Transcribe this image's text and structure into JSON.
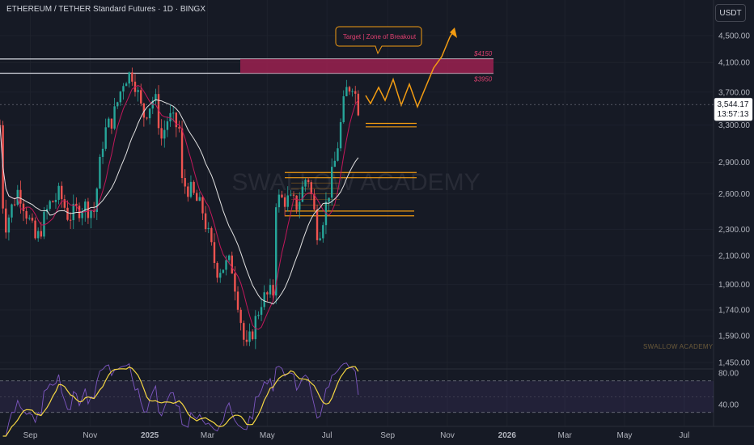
{
  "header": {
    "title": "ETHEREUM / TETHER Standard Futures · 1D · BINGX",
    "currency": "USDT"
  },
  "watermark": {
    "main": "SWALLOW ACADEMY",
    "small": "SWALLOW ACADEMY"
  },
  "annotations": {
    "target": "Target | Zone of Breakout",
    "upper_level": "$4150",
    "lower_level": "$3950"
  },
  "price_tag": {
    "price": "3,544.17",
    "countdown": "13:57:13"
  },
  "colors": {
    "background": "#161a25",
    "bull": "#26a69a",
    "bear": "#ef5350",
    "zone": "#9b2150",
    "orange": "#f39c12",
    "rsi": "#7e57c2",
    "rsi_ma": "#f5d742"
  },
  "chart_data": [
    {
      "type": "candlestick",
      "title": "ETHEREUM / TETHER Standard Futures · 1D · BINGX",
      "y_scale": "log",
      "y_ticks": [
        "4,500.00",
        "4,100.00",
        "3,700.00",
        "3,300.00",
        "2,900.00",
        "2,600.00",
        "2,300.00",
        "2,100.00",
        "1,900.00",
        "1,740.00",
        "1,590.00",
        "1,450.00"
      ],
      "x_ticks": [
        "Sep",
        "Nov",
        "2025",
        "Mar",
        "May",
        "Jul",
        "Sep",
        "Nov",
        "2026",
        "Mar",
        "May",
        "Jul"
      ],
      "last_price": 3544.17,
      "levels": [
        {
          "label": "$4150",
          "value": 4150
        },
        {
          "label": "$3950",
          "value": 3950
        }
      ],
      "support_zones": [
        [
          2800,
          2750
        ],
        [
          2450,
          2410
        ],
        [
          3320,
          3280
        ]
      ],
      "price_path": [
        [
          "2024-08-01",
          3300
        ],
        [
          "2024-08-05",
          2300
        ],
        [
          "2024-08-20",
          2650
        ],
        [
          "2024-09-07",
          2200
        ],
        [
          "2024-09-20",
          2500
        ],
        [
          "2024-10-01",
          2600
        ],
        [
          "2024-10-10",
          2400
        ],
        [
          "2024-10-25",
          2500
        ],
        [
          "2024-11-05",
          2450
        ],
        [
          "2024-11-15",
          3200
        ],
        [
          "2024-11-25",
          3400
        ],
        [
          "2024-12-06",
          3900
        ],
        [
          "2024-12-15",
          3950
        ],
        [
          "2024-12-25",
          3400
        ],
        [
          "2025-01-06",
          3650
        ],
        [
          "2025-01-13",
          3150
        ],
        [
          "2025-01-20",
          3400
        ],
        [
          "2025-01-31",
          3250
        ],
        [
          "2025-02-03",
          2700
        ],
        [
          "2025-02-10",
          2650
        ],
        [
          "2025-02-24",
          2450
        ],
        [
          "2025-03-10",
          2000
        ],
        [
          "2025-03-25",
          2050
        ],
        [
          "2025-04-01",
          1800
        ],
        [
          "2025-04-09",
          1500
        ],
        [
          "2025-04-15",
          1600
        ],
        [
          "2025-04-25",
          1800
        ],
        [
          "2025-05-07",
          1850
        ],
        [
          "2025-05-10",
          2550
        ],
        [
          "2025-05-20",
          2550
        ],
        [
          "2025-06-01",
          2500
        ],
        [
          "2025-06-11",
          2800
        ],
        [
          "2025-06-22",
          2250
        ],
        [
          "2025-06-30",
          2500
        ],
        [
          "2025-07-10",
          2950
        ],
        [
          "2025-07-20",
          3700
        ],
        [
          "2025-07-28",
          3850
        ],
        [
          "2025-08-01",
          3500
        ],
        [
          "2025-08-04",
          3544
        ]
      ]
    },
    {
      "type": "line",
      "title": "RSI",
      "y_ticks": [
        "80.00",
        "40.00"
      ],
      "bands": [
        30,
        70
      ]
    }
  ]
}
